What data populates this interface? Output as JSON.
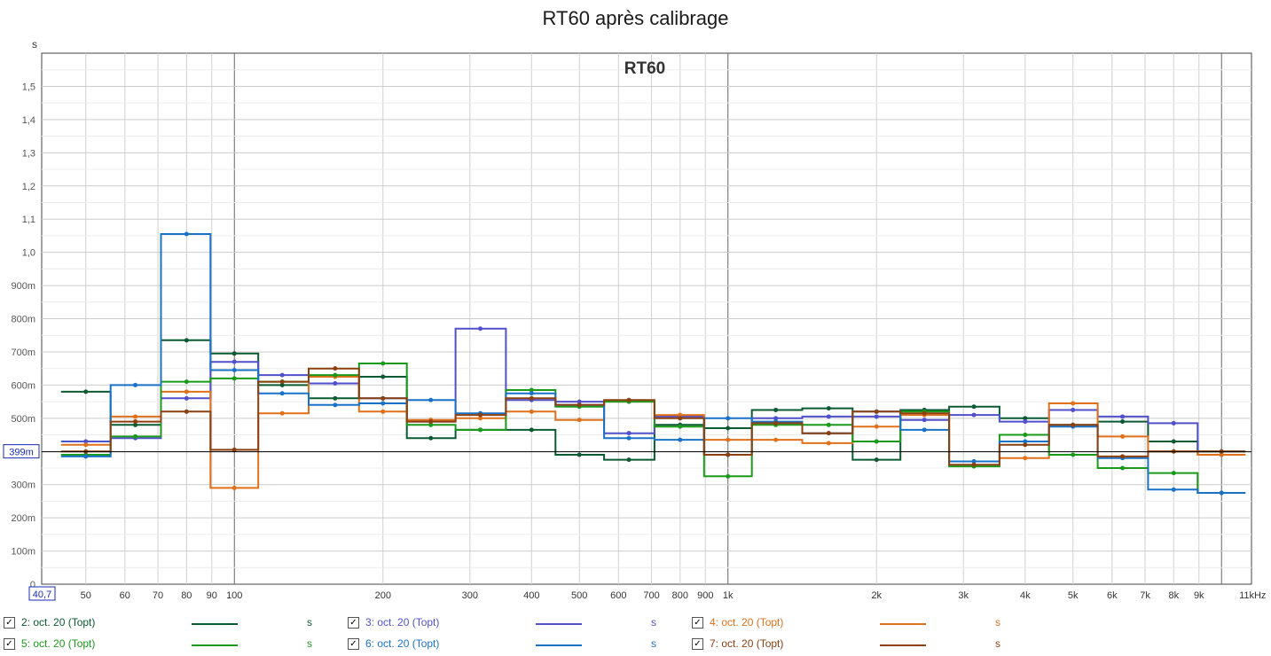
{
  "title": "RT60 après calibrage",
  "chart_data": {
    "type": "line",
    "title": "RT60",
    "ylabel": "s",
    "xlabel": "Hz",
    "x_scale": "log",
    "xlim": [
      40.7,
      11500
    ],
    "ylim": [
      0,
      1.6
    ],
    "x_cursor_label": "40,7",
    "y_cursor_label": "399m",
    "y_cursor_value": 0.399,
    "x_tick_labels": [
      {
        "v": 50,
        "t": "50"
      },
      {
        "v": 60,
        "t": "60"
      },
      {
        "v": 70,
        "t": "70"
      },
      {
        "v": 80,
        "t": "80"
      },
      {
        "v": 90,
        "t": "90"
      },
      {
        "v": 100,
        "t": "100"
      },
      {
        "v": 200,
        "t": "200"
      },
      {
        "v": 300,
        "t": "300"
      },
      {
        "v": 400,
        "t": "400"
      },
      {
        "v": 500,
        "t": "500"
      },
      {
        "v": 600,
        "t": "600"
      },
      {
        "v": 700,
        "t": "700"
      },
      {
        "v": 800,
        "t": "800"
      },
      {
        "v": 900,
        "t": "900"
      },
      {
        "v": 1000,
        "t": "1k"
      },
      {
        "v": 2000,
        "t": "2k"
      },
      {
        "v": 3000,
        "t": "3k"
      },
      {
        "v": 4000,
        "t": "4k"
      },
      {
        "v": 5000,
        "t": "5k"
      },
      {
        "v": 6000,
        "t": "6k"
      },
      {
        "v": 7000,
        "t": "7k"
      },
      {
        "v": 8000,
        "t": "8k"
      },
      {
        "v": 9000,
        "t": "9k"
      },
      {
        "v": 11000,
        "t": "11kHz"
      }
    ],
    "y_tick_labels": [
      {
        "v": 0,
        "t": "0"
      },
      {
        "v": 0.1,
        "t": "100m"
      },
      {
        "v": 0.2,
        "t": "200m"
      },
      {
        "v": 0.3,
        "t": "300m"
      },
      {
        "v": 0.5,
        "t": "500m"
      },
      {
        "v": 0.6,
        "t": "600m"
      },
      {
        "v": 0.7,
        "t": "700m"
      },
      {
        "v": 0.8,
        "t": "800m"
      },
      {
        "v": 0.9,
        "t": "900m"
      },
      {
        "v": 1.0,
        "t": "1,0"
      },
      {
        "v": 1.1,
        "t": "1,1"
      },
      {
        "v": 1.2,
        "t": "1,2"
      },
      {
        "v": 1.3,
        "t": "1,3"
      },
      {
        "v": 1.4,
        "t": "1,4"
      },
      {
        "v": 1.5,
        "t": "1,5"
      }
    ],
    "unit_label": "s",
    "centers": [
      50,
      63,
      80,
      100,
      125,
      160,
      200,
      250,
      315,
      400,
      500,
      630,
      800,
      1000,
      1250,
      1600,
      2000,
      2500,
      3150,
      4000,
      5000,
      6300,
      8000,
      10000
    ],
    "series": [
      {
        "name": "2: oct. 20 (Topt)",
        "color": "#0a5a32",
        "values": [
          0.58,
          0.48,
          0.735,
          0.695,
          0.6,
          0.56,
          0.625,
          0.44,
          0.465,
          0.465,
          0.39,
          0.375,
          0.48,
          0.47,
          0.525,
          0.53,
          0.375,
          0.525,
          0.535,
          0.5,
          0.48,
          0.49,
          0.43,
          0.4
        ]
      },
      {
        "name": "3: oct. 20 (Topt)",
        "color": "#5050cc",
        "values": [
          0.43,
          0.44,
          0.56,
          0.67,
          0.63,
          0.605,
          0.56,
          0.49,
          0.77,
          0.555,
          0.55,
          0.455,
          0.505,
          0.39,
          0.5,
          0.505,
          0.505,
          0.495,
          0.51,
          0.49,
          0.525,
          0.505,
          0.485,
          0.39
        ]
      },
      {
        "name": "4: oct. 20 (Topt)",
        "color": "#e0701a",
        "values": [
          0.42,
          0.505,
          0.58,
          0.29,
          0.515,
          0.625,
          0.52,
          0.495,
          0.5,
          0.52,
          0.495,
          0.55,
          0.51,
          0.435,
          0.435,
          0.425,
          0.475,
          0.51,
          0.37,
          0.38,
          0.545,
          0.445,
          0.4,
          0.39
        ]
      },
      {
        "name": "5: oct. 20 (Topt)",
        "color": "#1a9a1a",
        "values": [
          0.39,
          0.445,
          0.61,
          0.62,
          0.61,
          0.63,
          0.665,
          0.48,
          0.465,
          0.585,
          0.535,
          0.55,
          0.475,
          0.325,
          0.48,
          0.48,
          0.43,
          0.52,
          0.355,
          0.45,
          0.39,
          0.35,
          0.335,
          0.275
        ]
      },
      {
        "name": "6: oct. 20 (Topt)",
        "color": "#1a72c8",
        "values": [
          0.385,
          0.6,
          1.055,
          0.645,
          0.575,
          0.54,
          0.545,
          0.555,
          0.515,
          0.575,
          0.54,
          0.44,
          0.435,
          0.5,
          0.49,
          0.455,
          0.52,
          0.465,
          0.37,
          0.43,
          0.475,
          0.38,
          0.285,
          0.275
        ]
      },
      {
        "name": "7: oct. 20 (Topt)",
        "color": "#8a4010",
        "values": [
          0.4,
          0.49,
          0.52,
          0.405,
          0.61,
          0.65,
          0.56,
          0.49,
          0.51,
          0.56,
          0.54,
          0.555,
          0.5,
          0.39,
          0.485,
          0.455,
          0.52,
          0.515,
          0.36,
          0.42,
          0.48,
          0.385,
          0.4,
          0.4
        ]
      }
    ]
  }
}
